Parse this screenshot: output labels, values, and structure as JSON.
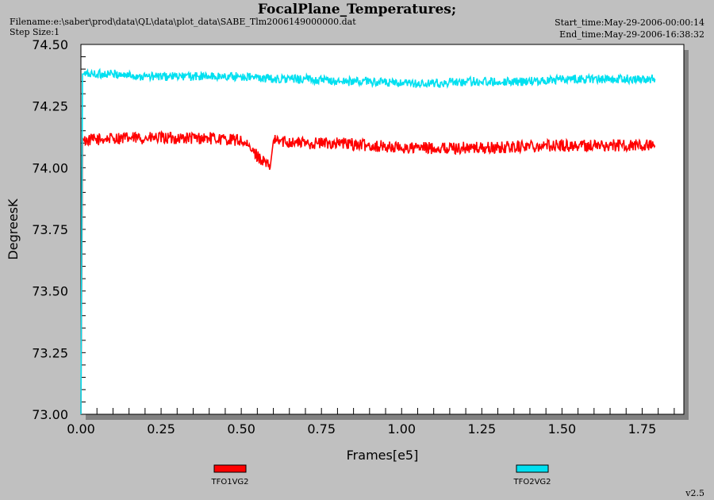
{
  "header": {
    "title": "FocalPlane_Temperatures;",
    "filename": "Filename:e:\\saber\\prod\\data\\QL\\data\\plot_data\\SABE_Tlm2006149000000.dat",
    "step_size": "Step Size:1",
    "start_time": "Start_time:May-29-2006-00:00:14",
    "end_time": "End_time:May-29-2006-16:38:32"
  },
  "version": "v2.5",
  "chart_data": {
    "type": "line",
    "title": "FocalPlane_Temperatures;",
    "xlabel": "Frames[e5]",
    "ylabel": "DegreesK",
    "xlim": [
      0,
      1.88
    ],
    "ylim": [
      73.0,
      74.5
    ],
    "x_ticks": [
      "0.00",
      "0.25",
      "0.50",
      "0.75",
      "1.00",
      "1.25",
      "1.50",
      "1.75"
    ],
    "y_ticks": [
      "73.00",
      "73.25",
      "73.50",
      "73.75",
      "74.00",
      "74.25",
      "74.50"
    ],
    "x_tick_values": [
      0,
      0.25,
      0.5,
      0.75,
      1.0,
      1.25,
      1.5,
      1.75
    ],
    "y_tick_values": [
      73.0,
      73.25,
      73.5,
      73.75,
      74.0,
      74.25,
      74.5
    ],
    "grid": false,
    "legend": "bottom",
    "series": [
      {
        "name": "TFO1VG2",
        "color": "#ff0000",
        "x": [
          0.0,
          0.005,
          0.01,
          0.1,
          0.2,
          0.3,
          0.4,
          0.5,
          0.59,
          0.6,
          0.7,
          0.8,
          0.9,
          1.0,
          1.1,
          1.2,
          1.3,
          1.4,
          1.5,
          1.6,
          1.7,
          1.79
        ],
        "values": [
          73.0,
          74.12,
          74.11,
          74.12,
          74.12,
          74.12,
          74.12,
          74.11,
          74.0,
          74.11,
          74.1,
          74.1,
          74.09,
          74.08,
          74.08,
          74.08,
          74.08,
          74.09,
          74.09,
          74.09,
          74.09,
          74.09
        ],
        "noise": 0.025
      },
      {
        "name": "TFO2VG2",
        "color": "#00e0f0",
        "x": [
          0.0,
          0.005,
          0.01,
          0.1,
          0.2,
          0.3,
          0.4,
          0.5,
          0.6,
          0.7,
          0.8,
          0.9,
          1.0,
          1.1,
          1.2,
          1.3,
          1.4,
          1.5,
          1.6,
          1.7,
          1.79
        ],
        "values": [
          73.0,
          74.38,
          74.38,
          74.38,
          74.37,
          74.37,
          74.37,
          74.37,
          74.36,
          74.36,
          74.35,
          74.35,
          74.34,
          74.34,
          74.35,
          74.35,
          74.35,
          74.36,
          74.36,
          74.36,
          74.36
        ],
        "noise": 0.018
      }
    ]
  }
}
